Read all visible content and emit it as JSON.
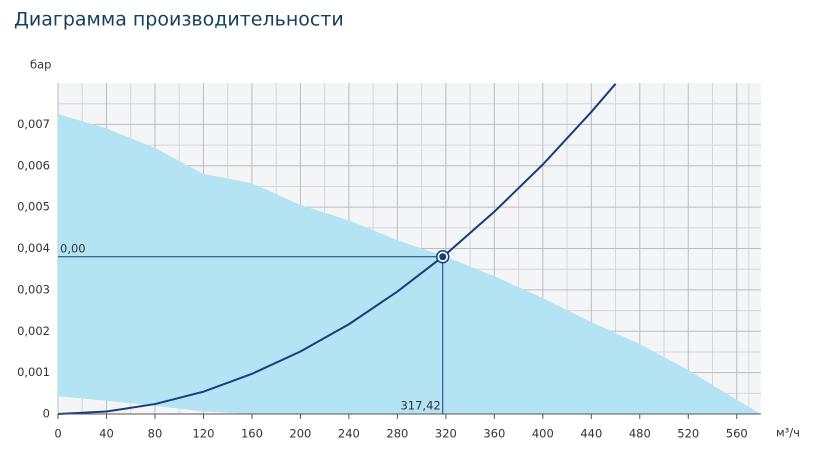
{
  "chart_data": {
    "type": "line",
    "title": "Диаграмма производительности",
    "y_label": "бар",
    "x_label": "м³/ч",
    "xlim": [
      0,
      580
    ],
    "ylim": [
      0,
      0.008
    ],
    "xticks": [
      0,
      40,
      80,
      120,
      160,
      200,
      240,
      280,
      320,
      360,
      400,
      440,
      480,
      520,
      560
    ],
    "yticks": [
      0,
      {
        "value": 0.001,
        "label": "0,001"
      },
      {
        "value": 0.002,
        "label": "0,002"
      },
      {
        "value": 0.003,
        "label": "0,003"
      },
      {
        "value": 0.004,
        "label": "0,004"
      },
      {
        "value": 0.005,
        "label": "0,005"
      },
      {
        "value": 0.006,
        "label": "0,006"
      },
      {
        "value": 0.007,
        "label": "0,007"
      }
    ],
    "grid": true,
    "series": [
      {
        "type": "area",
        "color": "#b4e3f3",
        "x": [
          0,
          40,
          80,
          120,
          160,
          200,
          240,
          280,
          320,
          360,
          400,
          440,
          480,
          520,
          560,
          580
        ],
        "values": [
          0.00725,
          0.0069,
          0.00643,
          0.0058,
          0.00558,
          0.00505,
          0.00468,
          0.0042,
          0.0038,
          0.00333,
          0.0028,
          0.00222,
          0.00169,
          0.00106,
          0.00034,
          0
        ],
        "lower": [
          0.00043,
          0.00032,
          0.0002,
          6e-05,
          0,
          0,
          0,
          0,
          0,
          0,
          0,
          0,
          0,
          0,
          0,
          0
        ]
      },
      {
        "type": "line",
        "color": "#163f7c",
        "x": [
          0,
          40,
          80,
          120,
          160,
          200,
          240,
          280,
          320,
          360,
          400,
          440,
          460
        ],
        "values": [
          0,
          6e-05,
          0.00024,
          0.00054,
          0.00097,
          0.00151,
          0.00217,
          0.00296,
          0.00386,
          0.00489,
          0.00603,
          0.0073,
          0.00798
        ]
      }
    ],
    "point": {
      "x": 317.42,
      "y": 0.0038,
      "x_label": "317,42",
      "y_label": "0,00",
      "color": "#163f7c"
    }
  }
}
